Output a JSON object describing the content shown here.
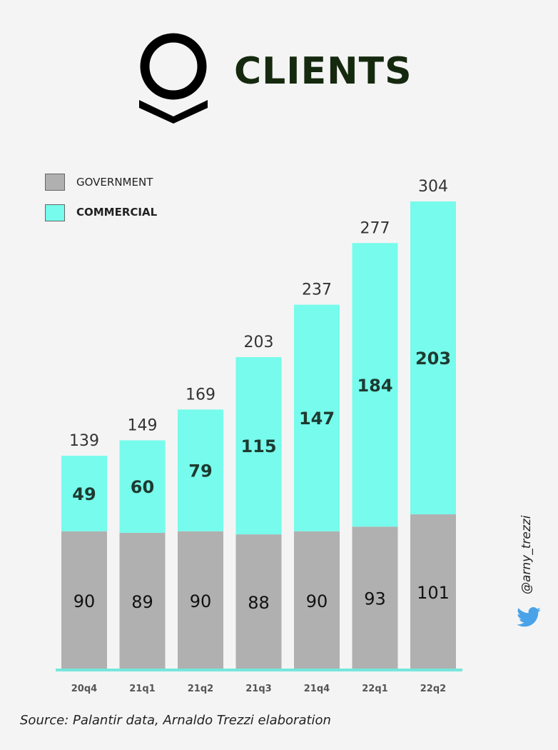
{
  "header": {
    "title": "CLIENTS",
    "logo_icon": "palantir-logo-icon"
  },
  "legend": {
    "items": [
      {
        "label": "GOVERNMENT",
        "color": "#b0b0b0",
        "bold": false
      },
      {
        "label": "COMMERCIAL",
        "color": "#76fbec",
        "bold": true
      }
    ]
  },
  "chart_data": {
    "type": "bar",
    "stacked": true,
    "categories": [
      "20q4",
      "21q1",
      "21q2",
      "21q3",
      "21q4",
      "22q1",
      "22q2"
    ],
    "series": [
      {
        "name": "GOVERNMENT",
        "values": [
          90,
          89,
          90,
          88,
          90,
          93,
          101
        ],
        "color": "#b0b0b0"
      },
      {
        "name": "COMMERCIAL",
        "values": [
          49,
          60,
          79,
          115,
          147,
          184,
          203
        ],
        "color": "#76fbec"
      }
    ],
    "totals": [
      139,
      149,
      169,
      203,
      237,
      277,
      304
    ],
    "ylim": [
      0,
      340
    ],
    "grid": false,
    "legend_position": "top-left"
  },
  "credit": {
    "handle": "@arny_trezzi",
    "icon": "twitter-bird-icon",
    "icon_color": "#4aa3e8"
  },
  "source": "Source: Palantir data, Arnaldo Trezzi elaboration"
}
